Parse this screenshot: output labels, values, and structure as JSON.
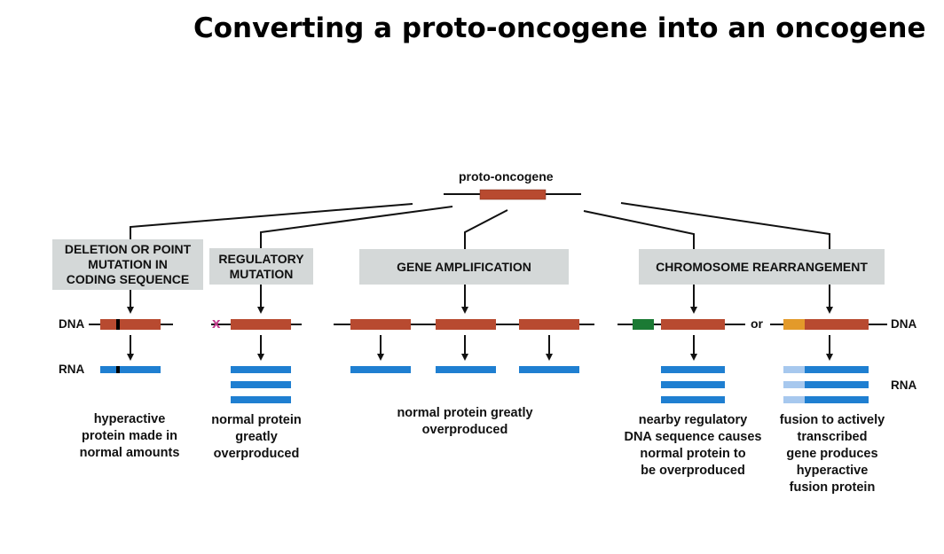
{
  "title": "Converting a proto-oncogene into an oncogene",
  "diagram": {
    "root_label": "proto-oncogene",
    "categories": [
      {
        "id": "deletion",
        "label": "DELETION OR POINT\nMUTATION IN\nCODING SEQUENCE"
      },
      {
        "id": "regulatory",
        "label": "REGULATORY\nMUTATION"
      },
      {
        "id": "amplification",
        "label": "GENE AMPLIFICATION"
      },
      {
        "id": "rearrangement",
        "label": "CHROMOSOME REARRANGEMENT"
      }
    ],
    "dna_label_left": "DNA",
    "rna_label_left": "RNA",
    "dna_label_right": "DNA",
    "rna_label_right": "RNA",
    "or_label": "or",
    "mutation_mark": "x",
    "outcomes": {
      "deletion": "hyperactive\nprotein made in\nnormal amounts",
      "regulatory": "normal protein\ngreatly\noverproduced",
      "amplification": "normal protein greatly\noverproduced",
      "rearrangement_a": "nearby regulatory\nDNA sequence causes\nnormal protein to\nbe overproduced",
      "rearrangement_b": "fusion to actively\ntranscribed\ngene produces\nhyperactive\nfusion protein"
    },
    "colors": {
      "gene": "#b84a30",
      "rna": "#1f7fd1",
      "rna_light": "#a7c8ee",
      "regulatory_dna": "#1b7a34",
      "fusion_dna": "#e39a2a",
      "mutation_mark": "#c0398a",
      "box": "#d4d8d8",
      "line": "#111111"
    }
  }
}
